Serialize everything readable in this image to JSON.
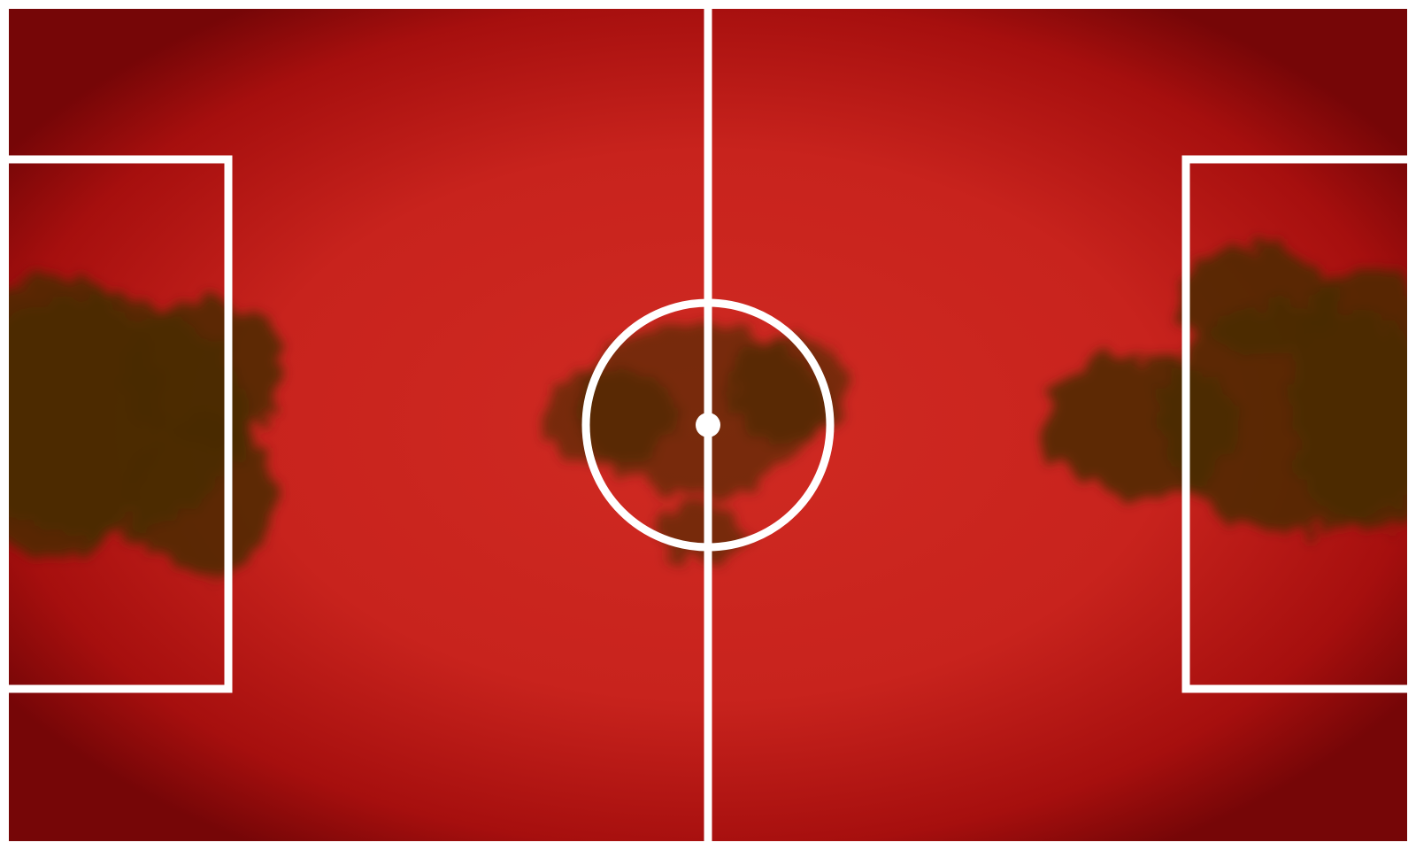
{
  "pitch": {
    "surface_color": "#d02a22",
    "surface_edge_color": "#760607",
    "line_color": "#ffffff",
    "background_color": "#ffffff"
  },
  "heatmap": {
    "color": "#4a2a06",
    "zones": [
      {
        "name": "left-goal-area",
        "intensity": 0.85
      },
      {
        "name": "center-circle",
        "intensity": 0.65
      },
      {
        "name": "right-goal-area",
        "intensity": 0.85
      }
    ]
  }
}
